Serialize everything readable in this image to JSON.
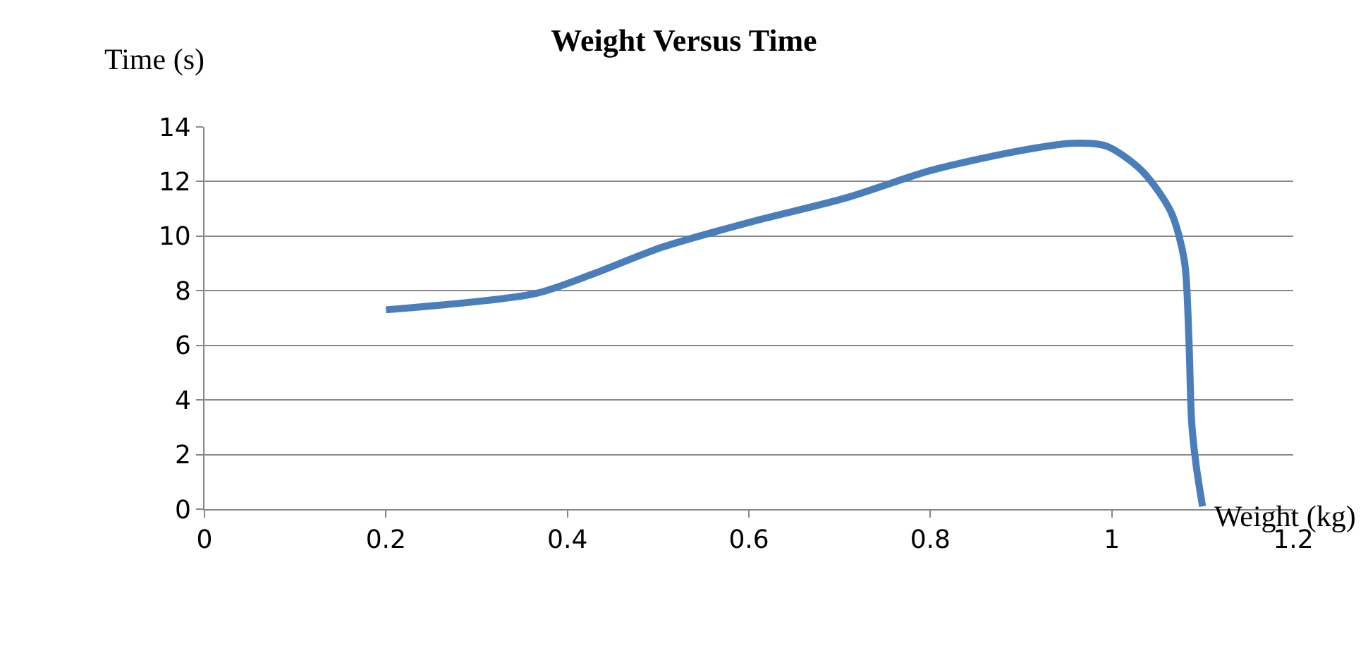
{
  "chart_data": {
    "type": "line",
    "title": "Weight Versus Time",
    "xlabel": "Weight (kg)",
    "ylabel": "Time (s)",
    "series": [
      {
        "color": "#4a7ebb",
        "x": [
          0.2,
          0.365,
          0.427,
          0.505,
          0.6,
          0.707,
          0.8,
          0.894,
          0.956,
          0.994,
          1.033,
          1.065,
          1.08,
          1.085,
          1.088,
          1.093,
          1.1
        ],
        "values": [
          7.3,
          7.9,
          8.6,
          9.6,
          10.5,
          11.4,
          12.4,
          13.1,
          13.4,
          13.3,
          12.4,
          10.9,
          9.1,
          6.2,
          3.2,
          1.6,
          0.1
        ]
      }
    ],
    "xlim": [
      0,
      1.2
    ],
    "xticks": [
      0,
      0.2,
      0.4,
      0.6,
      0.8,
      1,
      1.2
    ],
    "ylim": [
      0,
      14
    ],
    "yticks": [
      0,
      2,
      4,
      6,
      8,
      10,
      12,
      14
    ],
    "grid": "y",
    "marker": "none",
    "line_style": "solid"
  }
}
